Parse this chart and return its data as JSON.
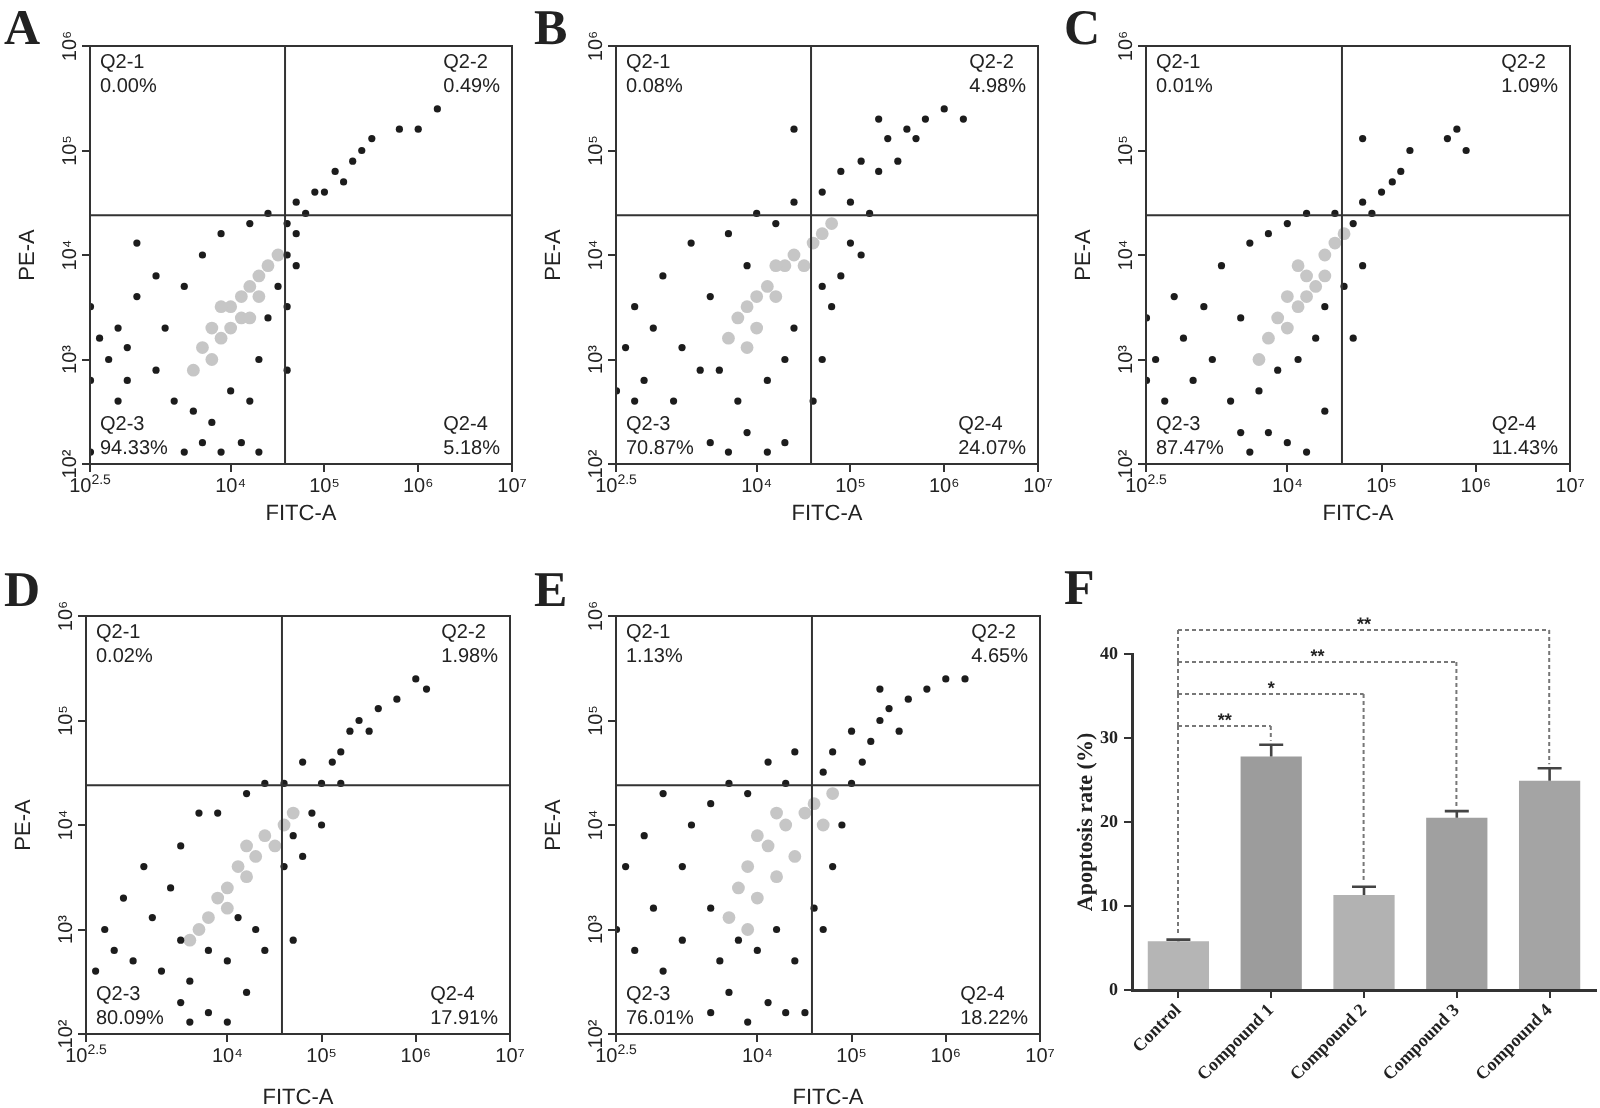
{
  "chart_data": [
    {
      "type": "scatter",
      "title": "A",
      "xlabel": "FITC-A",
      "ylabel": "PE-A",
      "log": "xy",
      "marker": "circle",
      "xlim": [
        316.23,
        10000000
      ],
      "ylim": [
        100,
        1000000
      ],
      "xticks": [
        {
          "value": 316.23,
          "label": "10$^{2.5}$"
        },
        {
          "value": 10000,
          "label": "10⁴"
        },
        {
          "value": 100000,
          "label": "10⁵"
        },
        {
          "value": 1000000,
          "label": "10⁶"
        },
        {
          "value": 10000000,
          "label": "10⁷"
        }
      ],
      "yticks": [
        {
          "value": 100,
          "label": "10²"
        },
        {
          "value": 1000,
          "label": "10³"
        },
        {
          "value": 10000,
          "label": "10⁴"
        },
        {
          "value": 100000,
          "label": "10⁵"
        },
        {
          "value": 1000000,
          "label": "10⁶"
        }
      ],
      "ref_lines": [
        {
          "axis": "x",
          "value": 38000
        },
        {
          "axis": "y",
          "value": 24000
        }
      ],
      "annotations": [
        "Q2-1",
        "0.00%",
        "Q2-2",
        "0.49%",
        "Q2-3",
        "94.33%",
        "Q2-4",
        "5.18%"
      ],
      "series": [
        {
          "color": "#1c1c1c",
          "x": [
            320,
            630,
            3200,
            5000,
            7900,
            13000,
            20000,
            320,
            400,
            320,
            500,
            790,
            630,
            1000,
            1000,
            1600,
            2000,
            2500,
            4000,
            3200,
            6300,
            5000,
            7900,
            16000,
            25000,
            20000,
            25000,
            16000,
            10000,
            32000,
            40000,
            50000,
            63000,
            79000,
            100000,
            130000,
            160000,
            200000,
            250000,
            320000,
            630000,
            1000000,
            1600000,
            40000,
            50000,
            40000,
            50000,
            40000,
            1600,
            790
          ],
          "values": [
            130,
            400,
            130,
            160,
            130,
            160,
            130,
            630,
            1600,
            3200,
            1000,
            630,
            2000,
            4000,
            13000,
            790,
            2000,
            400,
            320,
            5000,
            250,
            10000,
            16000,
            20000,
            25000,
            1000,
            2500,
            400,
            500,
            5000,
            20000,
            32000,
            25000,
            40000,
            40000,
            63000,
            50000,
            79000,
            100000,
            130000,
            160000,
            160000,
            250000,
            10000,
            16000,
            3200,
            7900,
            790,
            6300,
            1300
          ]
        },
        {
          "color": "#c6c6c6",
          "x": [
            4000,
            5000,
            6300,
            7900,
            10000,
            13000,
            13000,
            16000,
            20000,
            20000,
            25000,
            6300,
            10000,
            7900,
            16000,
            32000
          ],
          "values": [
            790,
            1300,
            2000,
            1600,
            3200,
            2500,
            4000,
            5000,
            4000,
            6300,
            7900,
            1000,
            2000,
            3200,
            2500,
            10000
          ]
        }
      ]
    },
    {
      "type": "scatter",
      "title": "B",
      "xlabel": "FITC-A",
      "ylabel": "PE-A",
      "log": "xy",
      "marker": "circle",
      "xlim": [
        316.23,
        10000000
      ],
      "ylim": [
        100,
        1000000
      ],
      "xticks": [
        {
          "value": 316.23,
          "label": "10$^{2.5}$"
        },
        {
          "value": 10000,
          "label": "10⁴"
        },
        {
          "value": 100000,
          "label": "10⁵"
        },
        {
          "value": 1000000,
          "label": "10⁶"
        },
        {
          "value": 10000000,
          "label": "10⁷"
        }
      ],
      "yticks": [
        {
          "value": 100,
          "label": "10²"
        },
        {
          "value": 1000,
          "label": "10³"
        },
        {
          "value": 10000,
          "label": "10⁴"
        },
        {
          "value": 100000,
          "label": "10⁵"
        },
        {
          "value": 1000000,
          "label": "10⁶"
        }
      ],
      "ref_lines": [
        {
          "axis": "x",
          "value": 38000
        },
        {
          "axis": "y",
          "value": 24000
        }
      ],
      "annotations": [
        "Q2-1",
        "0.08%",
        "Q2-2",
        "4.98%",
        "Q2-3",
        "70.87%",
        "Q2-4",
        "24.07%"
      ],
      "series": [
        {
          "color": "#1c1c1c",
          "x": [
            3200,
            5000,
            7900,
            13000,
            20000,
            320,
            400,
            500,
            630,
            790,
            1000,
            1300,
            1600,
            2000,
            3200,
            4000,
            5000,
            6300,
            7900,
            10000,
            16000,
            13000,
            20000,
            25000,
            50000,
            63000,
            79000,
            100000,
            50000,
            40000,
            160000,
            130000,
            50000,
            79000,
            100000,
            130000,
            200000,
            250000,
            320000,
            400000,
            630000,
            1000000,
            1600000,
            200000,
            500000,
            25000,
            25000,
            2500,
            500
          ],
          "values": [
            160,
            130,
            200,
            130,
            160,
            500,
            1300,
            3200,
            630,
            2000,
            6300,
            400,
            1300,
            13000,
            4000,
            790,
            16000,
            400,
            7900,
            25000,
            20000,
            630,
            1000,
            32000,
            1000,
            3200,
            6300,
            13000,
            5000,
            400,
            25000,
            10000,
            40000,
            63000,
            32000,
            79000,
            63000,
            130000,
            79000,
            160000,
            200000,
            250000,
            200000,
            200000,
            130000,
            160000,
            2000,
            790,
            400
          ]
        },
        {
          "color": "#c6c6c6",
          "x": [
            5000,
            6300,
            7900,
            10000,
            13000,
            16000,
            20000,
            25000,
            32000,
            40000,
            50000,
            63000,
            16000,
            10000,
            7900
          ],
          "values": [
            1600,
            2500,
            3200,
            2000,
            5000,
            4000,
            7900,
            10000,
            7900,
            13000,
            16000,
            20000,
            7900,
            4000,
            1300
          ]
        }
      ]
    },
    {
      "type": "scatter",
      "title": "C",
      "xlabel": "FITC-A",
      "ylabel": "PE-A",
      "log": "xy",
      "marker": "circle",
      "xlim": [
        316.23,
        10000000
      ],
      "ylim": [
        100,
        1000000
      ],
      "xticks": [
        {
          "value": 316.23,
          "label": "10$^{2.5}$"
        },
        {
          "value": 10000,
          "label": "10⁴"
        },
        {
          "value": 100000,
          "label": "10⁵"
        },
        {
          "value": 1000000,
          "label": "10⁶"
        },
        {
          "value": 10000000,
          "label": "10⁷"
        }
      ],
      "yticks": [
        {
          "value": 100,
          "label": "10²"
        },
        {
          "value": 1000,
          "label": "10³"
        },
        {
          "value": 10000,
          "label": "10⁴"
        },
        {
          "value": 100000,
          "label": "10⁵"
        },
        {
          "value": 1000000,
          "label": "10⁶"
        }
      ],
      "ref_lines": [
        {
          "axis": "x",
          "value": 38000
        },
        {
          "axis": "y",
          "value": 24000
        }
      ],
      "annotations": [
        "Q2-1",
        "0.01%",
        "Q2-2",
        "1.09%",
        "Q2-3",
        "87.47%",
        "Q2-4",
        "11.43%"
      ],
      "series": [
        {
          "color": "#1c1c1c",
          "x": [
            4000,
            6300,
            10000,
            16000,
            320,
            320,
            400,
            500,
            630,
            790,
            1000,
            1300,
            1600,
            2000,
            2500,
            3200,
            4000,
            5000,
            6300,
            7900,
            10000,
            13000,
            16000,
            20000,
            25000,
            32000,
            40000,
            50000,
            63000,
            50000,
            63000,
            79000,
            100000,
            130000,
            160000,
            200000,
            500000,
            630000,
            790000,
            63000,
            3200,
            25000
          ],
          "values": [
            130,
            200,
            160,
            130,
            630,
            2500,
            1000,
            400,
            4000,
            1600,
            630,
            3200,
            1000,
            7900,
            400,
            2500,
            13000,
            500,
            16000,
            790,
            20000,
            1000,
            25000,
            1600,
            3200,
            25000,
            5000,
            20000,
            7900,
            1600,
            32000,
            25000,
            40000,
            50000,
            63000,
            100000,
            130000,
            160000,
            100000,
            130000,
            200,
            320
          ]
        },
        {
          "color": "#c6c6c6",
          "x": [
            6300,
            7900,
            10000,
            13000,
            16000,
            20000,
            25000,
            32000,
            40000,
            10000,
            16000,
            25000,
            5000,
            13000
          ],
          "values": [
            1600,
            2500,
            4000,
            3200,
            6300,
            5000,
            10000,
            13000,
            16000,
            2000,
            4000,
            6300,
            1000,
            7900
          ]
        }
      ]
    },
    {
      "type": "scatter",
      "title": "D",
      "xlabel": "FITC-A",
      "ylabel": "PE-A",
      "log": "xy",
      "marker": "circle",
      "xlim": [
        316.23,
        10000000
      ],
      "ylim": [
        100,
        1000000
      ],
      "xticks": [
        {
          "value": 316.23,
          "label": "10$^{2.5}$"
        },
        {
          "value": 10000,
          "label": "10⁴"
        },
        {
          "value": 100000,
          "label": "10⁵"
        },
        {
          "value": 1000000,
          "label": "10⁶"
        },
        {
          "value": 10000000,
          "label": "10⁷"
        }
      ],
      "yticks": [
        {
          "value": 100,
          "label": "10²"
        },
        {
          "value": 1000,
          "label": "10³"
        },
        {
          "value": 10000,
          "label": "10⁴"
        },
        {
          "value": 100000,
          "label": "10⁵"
        },
        {
          "value": 1000000,
          "label": "10⁶"
        }
      ],
      "ref_lines": [
        {
          "axis": "x",
          "value": 38000
        },
        {
          "axis": "y",
          "value": 24000
        }
      ],
      "annotations": [
        "Q2-1",
        "0.02%",
        "Q2-2",
        "1.98%",
        "Q2-3",
        "80.09%",
        "Q2-4",
        "17.91%"
      ],
      "series": [
        {
          "color": "#1c1c1c",
          "x": [
            4000,
            6300,
            10000,
            16000,
            400,
            500,
            630,
            790,
            1000,
            1300,
            1600,
            2000,
            2500,
            3200,
            3200,
            4000,
            5000,
            6300,
            7900,
            10000,
            13000,
            16000,
            20000,
            25000,
            25000,
            40000,
            50000,
            50000,
            63000,
            79000,
            100000,
            40000,
            63000,
            100000,
            130000,
            160000,
            200000,
            250000,
            320000,
            400000,
            630000,
            1000000,
            1300000,
            160000,
            3200
          ],
          "values": [
            130,
            160,
            130,
            250,
            400,
            1000,
            630,
            2000,
            500,
            4000,
            1300,
            400,
            2500,
            790,
            6300,
            320,
            13000,
            630,
            13000,
            500,
            1300,
            20000,
            1000,
            630,
            25000,
            4000,
            790,
            7900,
            5000,
            13000,
            10000,
            25000,
            40000,
            25000,
            40000,
            50000,
            79000,
            100000,
            79000,
            130000,
            160000,
            250000,
            200000,
            25000,
            200
          ]
        },
        {
          "color": "#c6c6c6",
          "x": [
            6300,
            7900,
            10000,
            13000,
            16000,
            20000,
            25000,
            32000,
            40000,
            50000,
            10000,
            16000,
            5000,
            4000
          ],
          "values": [
            1300,
            2000,
            2500,
            4000,
            3200,
            5000,
            7900,
            6300,
            10000,
            13000,
            1600,
            6300,
            1000,
            790
          ]
        }
      ]
    },
    {
      "type": "scatter",
      "title": "E",
      "xlabel": "FITC-A",
      "ylabel": "PE-A",
      "log": "xy",
      "marker": "circle",
      "xlim": [
        316.23,
        10000000
      ],
      "ylim": [
        100,
        1000000
      ],
      "xticks": [
        {
          "value": 316.23,
          "label": "10$^{2.5}$"
        },
        {
          "value": 10000,
          "label": "10⁴"
        },
        {
          "value": 100000,
          "label": "10⁵"
        },
        {
          "value": 1000000,
          "label": "10⁶"
        },
        {
          "value": 10000000,
          "label": "10⁷"
        }
      ],
      "yticks": [
        {
          "value": 100,
          "label": "10²"
        },
        {
          "value": 1000,
          "label": "10³"
        },
        {
          "value": 10000,
          "label": "10⁴"
        },
        {
          "value": 100000,
          "label": "10⁵"
        },
        {
          "value": 1000000,
          "label": "10⁶"
        }
      ],
      "ref_lines": [
        {
          "axis": "x",
          "value": 38000
        },
        {
          "axis": "y",
          "value": 24000
        }
      ],
      "annotations": [
        "Q2-1",
        "1.13%",
        "Q2-2",
        "4.65%",
        "Q2-3",
        "76.01%",
        "Q2-4",
        "18.22%"
      ],
      "series": [
        {
          "color": "#1c1c1c",
          "x": [
            3200,
            5000,
            7900,
            13000,
            20000,
            32000,
            320,
            400,
            500,
            630,
            790,
            1000,
            1000,
            1600,
            1600,
            2000,
            3200,
            3200,
            4000,
            5000,
            6300,
            7900,
            10000,
            13000,
            16000,
            20000,
            25000,
            25000,
            40000,
            50000,
            63000,
            79000,
            50000,
            63000,
            100000,
            130000,
            160000,
            100000,
            200000,
            250000,
            320000,
            400000,
            630000,
            1000000,
            1600000,
            200000
          ],
          "values": [
            160,
            250,
            130,
            200,
            160,
            160,
            1000,
            4000,
            630,
            7900,
            1600,
            400,
            20000,
            4000,
            790,
            10000,
            1600,
            16000,
            500,
            25000,
            790,
            20000,
            630,
            40000,
            1000,
            25000,
            500,
            50000,
            1600,
            1000,
            4000,
            10000,
            32000,
            50000,
            25000,
            40000,
            63000,
            79000,
            100000,
            130000,
            79000,
            160000,
            200000,
            250000,
            250000,
            200000
          ]
        },
        {
          "color": "#c6c6c6",
          "x": [
            5000,
            6300,
            7900,
            10000,
            13000,
            16000,
            20000,
            25000,
            32000,
            40000,
            50000,
            63000,
            10000,
            16000,
            7900
          ],
          "values": [
            1300,
            2500,
            4000,
            2000,
            6300,
            3200,
            10000,
            5000,
            13000,
            16000,
            10000,
            20000,
            7900,
            13000,
            1000
          ]
        }
      ]
    },
    {
      "type": "bar",
      "title": "F",
      "ylabel": "Apoptosis rate (%)",
      "categories": [
        "Control",
        "Compound 1",
        "Compound 2",
        "Compound 3",
        "Compound 4"
      ],
      "values": [
        5.8,
        27.8,
        11.3,
        20.5,
        24.9
      ],
      "errors": [
        [
          5.8,
          6.0
        ],
        [
          27.8,
          29.2
        ],
        [
          11.3,
          12.3
        ],
        [
          20.5,
          21.3
        ],
        [
          24.9,
          26.4
        ]
      ],
      "colors": [
        "#b5b5b5",
        "#9c9c9c",
        "#b2b2b2",
        "#a0a0a0",
        "#a4a4a4"
      ],
      "ylim": [
        0,
        40
      ],
      "yticks": [
        0,
        10,
        20,
        30,
        40
      ],
      "annotations": [
        "**",
        "*",
        "**",
        "**"
      ]
    }
  ]
}
